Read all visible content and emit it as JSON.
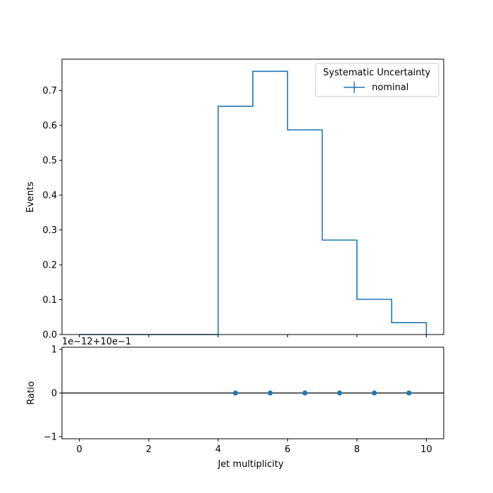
{
  "chart_data": [
    {
      "type": "step",
      "ylabel": "Events",
      "bin_edges": [
        0,
        1,
        2,
        3,
        4,
        5,
        6,
        7,
        8,
        9,
        10
      ],
      "series": [
        {
          "name": "nominal",
          "color": "#1f77b4",
          "values": [
            0,
            0,
            0,
            0,
            0.655,
            0.755,
            0.587,
            0.271,
            0.101,
            0.034
          ]
        }
      ],
      "xlim": [
        -0.5,
        10.5
      ],
      "ylim": [
        0,
        0.79
      ],
      "yticks": [
        "0.0",
        "0.1",
        "0.2",
        "0.3",
        "0.4",
        "0.5",
        "0.6",
        "0.7"
      ],
      "legend": {
        "title": "Systematic Uncertainty",
        "placement": "upper right"
      }
    },
    {
      "type": "scatter",
      "ylabel": "Ratio",
      "xlabel": "Jet multiplicity",
      "offset_text": "1e−12+10e−1",
      "series": [
        {
          "color": "#1f77b4",
          "x": [
            4.5,
            5.5,
            6.5,
            7.5,
            8.5,
            9.5
          ],
          "y": [
            0,
            0,
            0,
            0,
            0,
            0
          ]
        }
      ],
      "reference_line": 0,
      "xlim": [
        -0.5,
        10.5
      ],
      "ylim": [
        -1.05,
        1.05
      ],
      "yticks": [
        "−1",
        "0",
        "1"
      ],
      "xticks": [
        "0",
        "2",
        "4",
        "6",
        "8",
        "10"
      ]
    }
  ]
}
